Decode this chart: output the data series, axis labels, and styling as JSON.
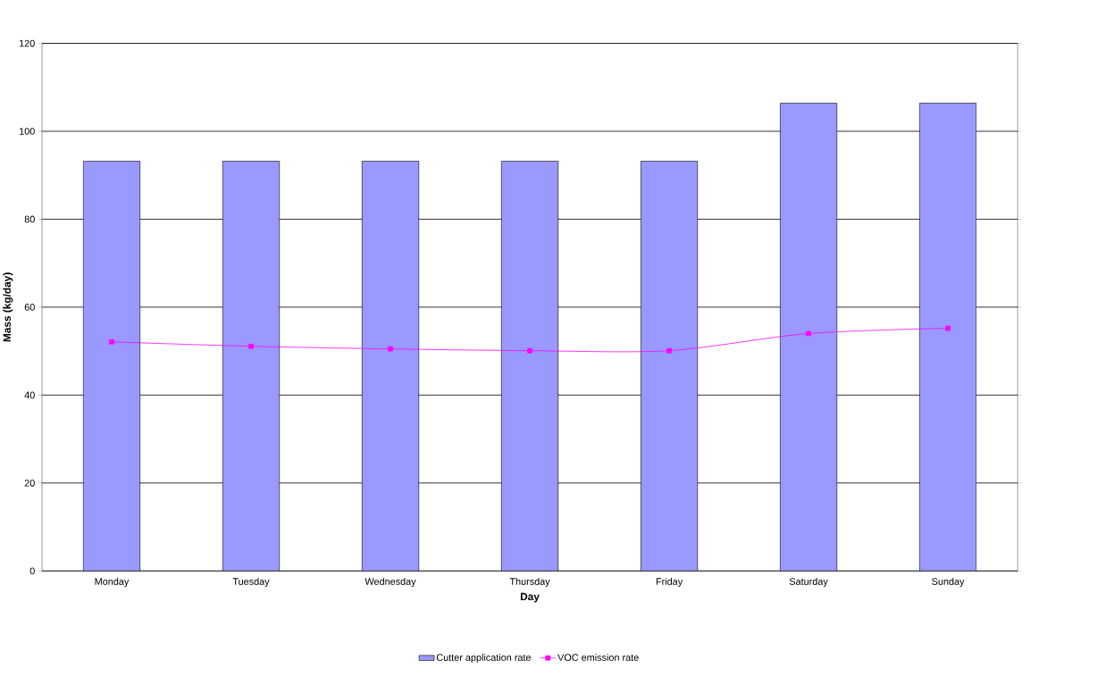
{
  "chart_data": {
    "type": "bar",
    "xlabel": "Day",
    "ylabel": "Mass (kg/day)",
    "categories": [
      "Monday",
      "Tuesday",
      "Wednesday",
      "Thursday",
      "Friday",
      "Saturday",
      "Sunday"
    ],
    "series": [
      {
        "name": "Cutter application rate",
        "color": "#9999ff",
        "values": [
          93.2,
          93.2,
          93.2,
          93.2,
          93.2,
          106.4,
          106.4
        ]
      },
      {
        "name": "VOC emission rate",
        "type": "line",
        "color": "#ff00ff",
        "marker": "square",
        "values": [
          52.1,
          51.1,
          50.5,
          50.1,
          50.1,
          54.0,
          55.2
        ]
      }
    ],
    "ylim": [
      0,
      120
    ],
    "yticks": [
      0,
      20,
      40,
      60,
      80,
      100,
      120
    ],
    "grid": "y",
    "legend": "bottom"
  }
}
